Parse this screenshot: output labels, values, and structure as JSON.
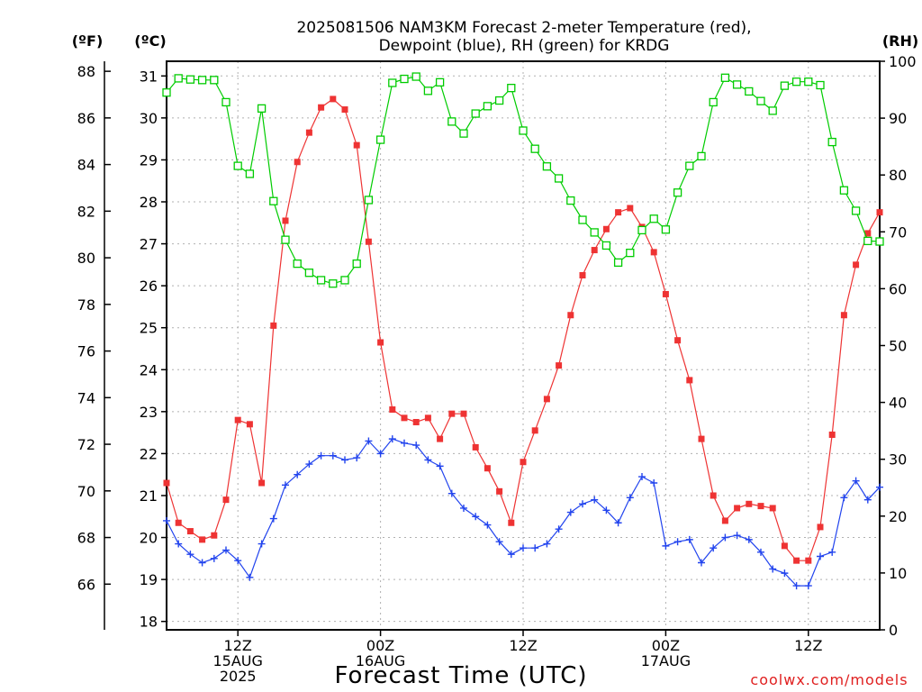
{
  "chart_data": {
    "type": "line",
    "title_line1": "2025081506 NAM3KM Forecast 2-meter Temperature (red),",
    "title_line2": "Dewpoint (blue), RH (green) for KRDG",
    "unit_f": "(ºF)",
    "unit_c": "(ºC)",
    "unit_rh": "(RH)",
    "xlabel": "Forecast Time (UTC)",
    "credit": "coolwx.com/models",
    "x_range_hours": [
      1,
      61
    ],
    "x_tick_hours": [
      7,
      19,
      31,
      43,
      55
    ],
    "x_tick_labels": [
      {
        "hour": 7,
        "lines": [
          "12Z",
          "15AUG",
          "2025"
        ]
      },
      {
        "hour": 19,
        "lines": [
          "00Z",
          "16AUG"
        ]
      },
      {
        "hour": 31,
        "lines": [
          "12Z"
        ]
      },
      {
        "hour": 43,
        "lines": [
          "00Z",
          "17AUG"
        ]
      },
      {
        "hour": 55,
        "lines": [
          "12Z"
        ]
      }
    ],
    "y_left_c": {
      "range": [
        17.8,
        31.35
      ],
      "ticks": [
        18,
        19,
        20,
        21,
        22,
        23,
        24,
        25,
        26,
        27,
        28,
        29,
        30,
        31
      ]
    },
    "y_left_f": {
      "ticks": [
        66,
        68,
        70,
        72,
        74,
        76,
        78,
        80,
        82,
        84,
        86,
        88
      ]
    },
    "y_right_rh": {
      "range": [
        0,
        100
      ],
      "ticks": [
        0,
        10,
        20,
        30,
        40,
        50,
        60,
        70,
        80,
        90,
        100
      ]
    },
    "grid": true,
    "colors": {
      "temperature": "#ee3333",
      "dewpoint": "#2244ee",
      "rh": "#00cc00"
    },
    "series": [
      {
        "name": "Temperature",
        "unit": "C",
        "marker": "filled-square",
        "hours": [
          1,
          2,
          3,
          4,
          5,
          6,
          7,
          8,
          9,
          10,
          11,
          12,
          13,
          14,
          15,
          16,
          17,
          18,
          19,
          20,
          21,
          22,
          23,
          24,
          25,
          26,
          27,
          28,
          29,
          30,
          31,
          32,
          33,
          34,
          35,
          36,
          37,
          38,
          39,
          40,
          41,
          42,
          43,
          44,
          45,
          46,
          47,
          48,
          49,
          50,
          51,
          52,
          53,
          54,
          55,
          56,
          57,
          58,
          59,
          60,
          61
        ],
        "values": [
          21.3,
          20.35,
          20.15,
          19.95,
          20.05,
          20.9,
          22.8,
          22.7,
          21.3,
          25.05,
          27.55,
          28.95,
          29.65,
          30.25,
          30.45,
          30.2,
          29.35,
          27.05,
          24.65,
          23.05,
          22.85,
          22.75,
          22.85,
          22.35,
          22.95,
          22.95,
          22.15,
          21.65,
          21.1,
          20.35,
          21.8,
          22.55,
          23.3,
          24.1,
          25.3,
          26.25,
          26.85,
          27.35,
          27.75,
          27.85,
          27.4,
          26.8,
          25.8,
          24.7,
          23.75,
          22.35,
          21.0,
          20.4,
          20.7,
          20.8,
          20.75,
          20.7,
          19.8,
          19.45,
          19.45,
          20.25,
          22.45,
          25.3,
          26.5,
          27.25,
          27.75
        ]
      },
      {
        "name": "Dewpoint",
        "unit": "C",
        "marker": "plus",
        "hours": [
          1,
          2,
          3,
          4,
          5,
          6,
          7,
          8,
          9,
          10,
          11,
          12,
          13,
          14,
          15,
          16,
          17,
          18,
          19,
          20,
          21,
          22,
          23,
          24,
          25,
          26,
          27,
          28,
          29,
          30,
          31,
          32,
          33,
          34,
          35,
          36,
          37,
          38,
          39,
          40,
          41,
          42,
          43,
          44,
          45,
          46,
          47,
          48,
          49,
          50,
          51,
          52,
          53,
          54,
          55,
          56,
          57,
          58,
          59,
          60,
          61
        ],
        "values": [
          20.4,
          19.85,
          19.6,
          19.4,
          19.5,
          19.7,
          19.45,
          19.05,
          19.85,
          20.45,
          21.25,
          21.5,
          21.75,
          21.95,
          21.95,
          21.85,
          21.9,
          22.3,
          22.0,
          22.35,
          22.25,
          22.2,
          21.85,
          21.7,
          21.05,
          20.7,
          20.5,
          20.3,
          19.9,
          19.6,
          19.75,
          19.75,
          19.85,
          20.2,
          20.6,
          20.8,
          20.9,
          20.65,
          20.35,
          20.95,
          21.45,
          21.3,
          19.8,
          19.9,
          19.95,
          19.4,
          19.75,
          20.0,
          20.05,
          19.95,
          19.65,
          19.25,
          19.15,
          18.85,
          18.85,
          19.55,
          19.65,
          20.95,
          21.35,
          20.9,
          21.2
        ]
      },
      {
        "name": "RH",
        "unit": "%",
        "marker": "open-square",
        "hours": [
          1,
          2,
          3,
          4,
          5,
          6,
          7,
          8,
          9,
          10,
          11,
          12,
          13,
          14,
          15,
          16,
          17,
          18,
          19,
          20,
          21,
          22,
          23,
          24,
          25,
          26,
          27,
          28,
          29,
          30,
          31,
          32,
          33,
          34,
          35,
          36,
          37,
          38,
          39,
          40,
          41,
          42,
          43,
          44,
          45,
          46,
          47,
          48,
          49,
          50,
          51,
          52,
          53,
          54,
          55,
          56,
          57,
          58,
          59,
          60,
          61
        ],
        "values": [
          94.5,
          97,
          96.8,
          96.7,
          96.7,
          92.8,
          81.6,
          80.2,
          91.7,
          75.4,
          68.6,
          64.4,
          62.8,
          61.5,
          60.9,
          61.5,
          64.4,
          75.6,
          86.2,
          96.2,
          96.9,
          97.3,
          94.8,
          96.3,
          89.4,
          87.3,
          90.8,
          92.1,
          93.1,
          95.3,
          87.8,
          84.6,
          81.5,
          79.4,
          75.5,
          72.1,
          69.9,
          67.6,
          64.6,
          66.3,
          70.3,
          72.3,
          70.4,
          76.9,
          81.6,
          83.3,
          92.8,
          97.1,
          95.9,
          94.7,
          93.0,
          91.3,
          95.7,
          96.4,
          96.4,
          95.8,
          85.8,
          77.3,
          73.7,
          68.4,
          68.3
        ]
      }
    ]
  }
}
